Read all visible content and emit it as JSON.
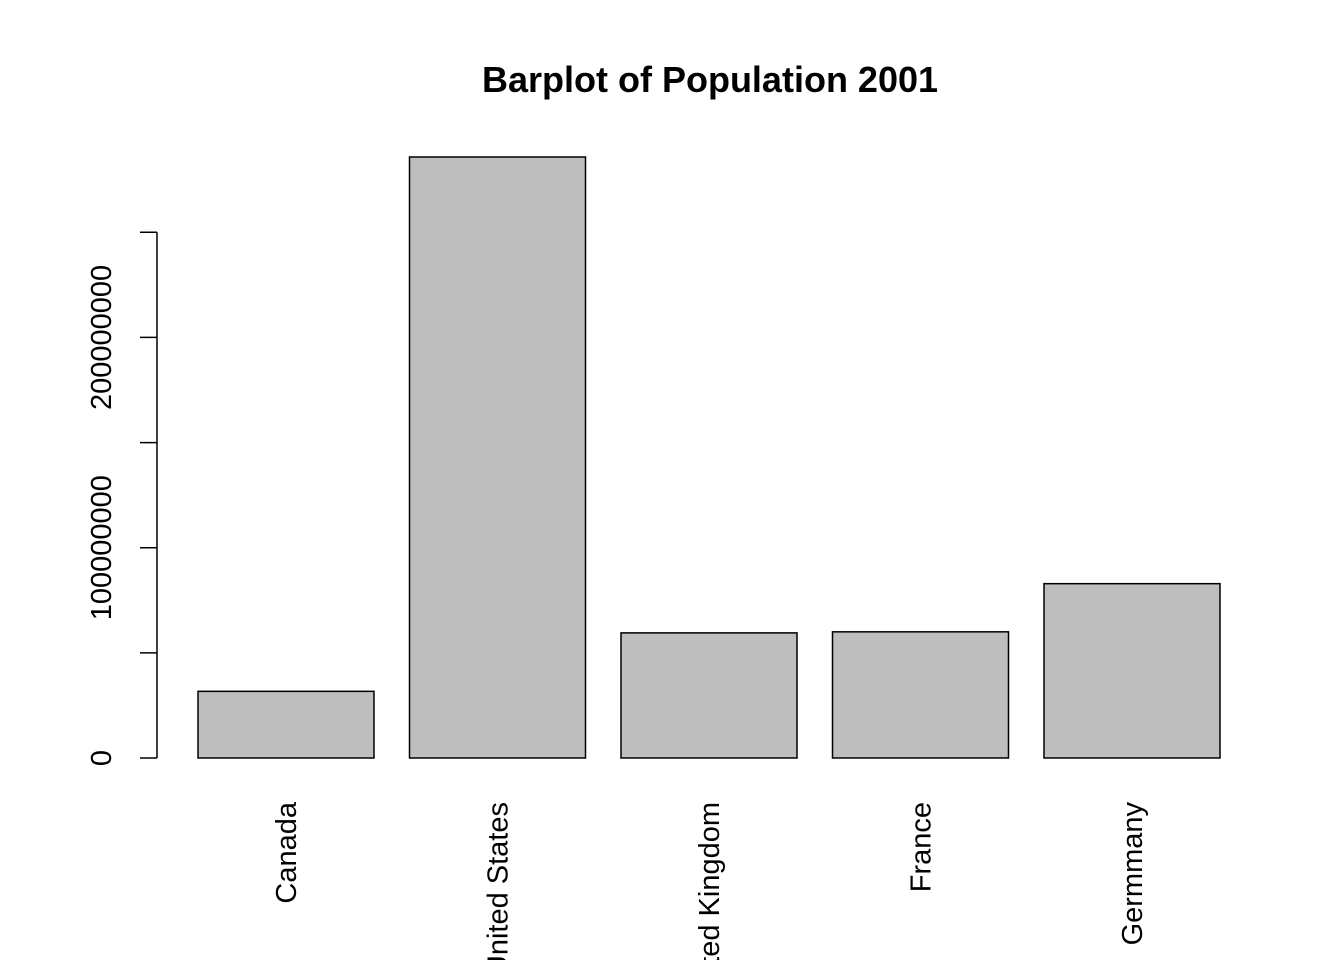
{
  "chart_data": {
    "type": "bar",
    "title": "Barplot of Population 2001",
    "xlabel": "",
    "ylabel": "",
    "categories": [
      "Canada",
      "United States",
      "United Kingdom",
      "France",
      "Germmany"
    ],
    "values": [
      31700000,
      285800000,
      59500000,
      60000000,
      82900000
    ],
    "ylim": [
      0,
      285800000
    ],
    "yticks": [
      0,
      50000000,
      100000000,
      150000000,
      200000000,
      250000000
    ],
    "ytick_labels": [
      "0",
      "",
      "100000000",
      "",
      "200000000",
      ""
    ],
    "grid": false,
    "legend": "none",
    "bar_fill": "#bebebe",
    "bar_stroke": "#000000"
  }
}
